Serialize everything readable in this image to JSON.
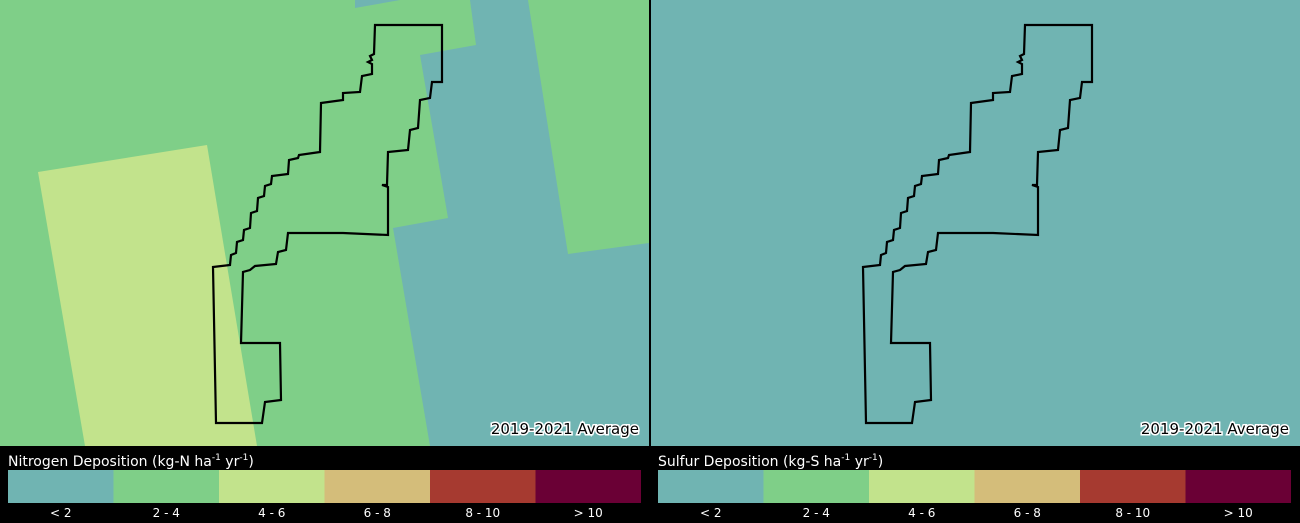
{
  "panels": [
    {
      "caption": "2019-2021 Average",
      "legend": {
        "title": [
          "Nitrogen Deposition (kg-N ha",
          "-1",
          " yr",
          "-1",
          ")"
        ],
        "classes": [
          {
            "label": "< 2",
            "color": "#70b4b2"
          },
          {
            "label": "2 - 4",
            "color": "#7fcf88"
          },
          {
            "label": "4 - 6",
            "color": "#c2e38c"
          },
          {
            "label": "6 - 8",
            "color": "#d4bd7a"
          },
          {
            "label": "8 - 10",
            "color": "#a63a30"
          },
          {
            "label": "> 10",
            "color": "#6a0035"
          }
        ]
      }
    },
    {
      "caption": "2019-2021 Average",
      "legend": {
        "title": [
          "Sulfur Deposition (kg-S ha",
          "-1",
          " yr",
          "-1",
          ")"
        ],
        "classes": [
          {
            "label": "< 2",
            "color": "#70b4b2"
          },
          {
            "label": "2 - 4",
            "color": "#7fcf88"
          },
          {
            "label": "4 - 6",
            "color": "#c2e38c"
          },
          {
            "label": "6 - 8",
            "color": "#d4bd7a"
          },
          {
            "label": "8 - 10",
            "color": "#a63a30"
          },
          {
            "label": "> 10",
            "color": "#6a0035"
          }
        ]
      }
    }
  ]
}
